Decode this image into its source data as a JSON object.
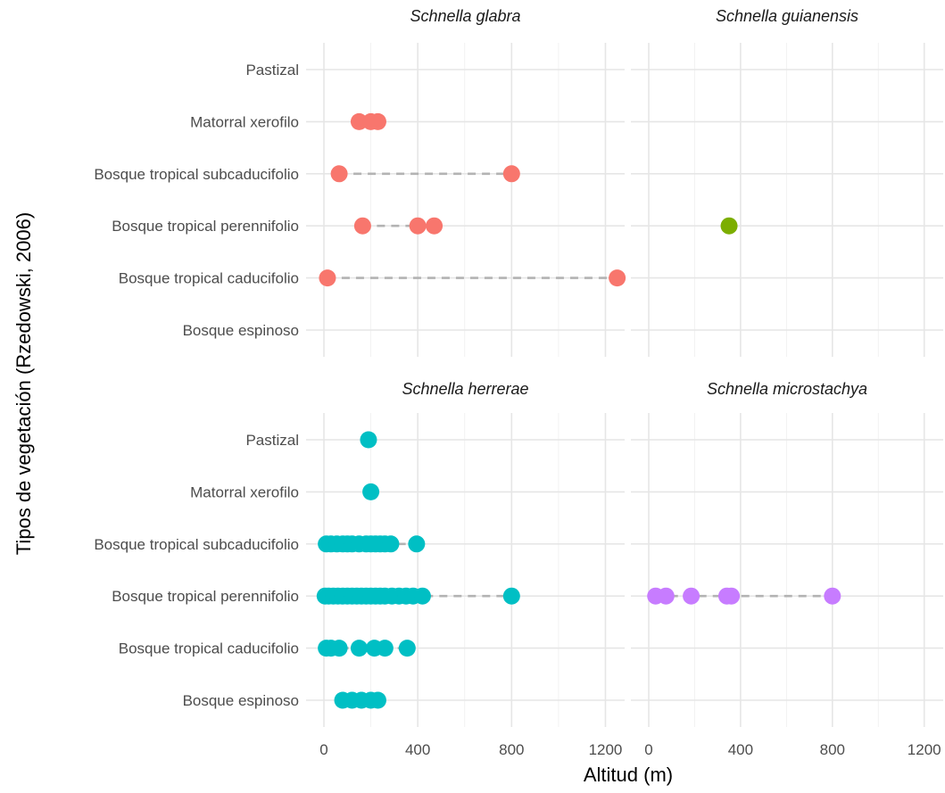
{
  "chart_data": {
    "type": "scatter",
    "facet_layout": "2x2",
    "xlabel": "Altitud (m)",
    "ylabel": "Tipos de vegetación (Rzedowski, 2006)",
    "xlim": [
      -50,
      1300
    ],
    "x_ticks": [
      0,
      400,
      800,
      1200
    ],
    "grid": true,
    "legend": "none",
    "categories": [
      "Bosque espinoso",
      "Bosque tropical caducifolio",
      "Bosque tropical perennifolio",
      "Bosque tropical subcaducifolio",
      "Matorral xerofilo",
      "Pastizal"
    ],
    "panels": [
      {
        "title": "Schnella glabra",
        "color": "#F8766D",
        "points": [
          {
            "category": "Matorral xerofilo",
            "x": [
              150,
              200,
              230
            ]
          },
          {
            "category": "Bosque tropical subcaducifolio",
            "x": [
              65,
              800
            ]
          },
          {
            "category": "Bosque tropical perennifolio",
            "x": [
              165,
              400,
              470
            ]
          },
          {
            "category": "Bosque tropical caducifolio",
            "x": [
              15,
              1250
            ]
          }
        ]
      },
      {
        "title": "Schnella guianensis",
        "color": "#7CAE00",
        "points": [
          {
            "category": "Bosque tropical perennifolio",
            "x": [
              350
            ]
          }
        ]
      },
      {
        "title": "Schnella herrerae",
        "color": "#00BFC4",
        "points": [
          {
            "category": "Pastizal",
            "x": [
              190
            ]
          },
          {
            "category": "Matorral xerofilo",
            "x": [
              200
            ]
          },
          {
            "category": "Bosque tropical subcaducifolio",
            "x": [
              10,
              30,
              55,
              80,
              100,
              120,
              150,
              180,
              200,
              220,
              240,
              260,
              285,
              395
            ]
          },
          {
            "category": "Bosque tropical perennifolio",
            "x": [
              5,
              20,
              40,
              60,
              80,
              100,
              120,
              140,
              160,
              180,
              200,
              220,
              240,
              260,
              290,
              320,
              350,
              380,
              420,
              800
            ]
          },
          {
            "category": "Bosque tropical caducifolio",
            "x": [
              10,
              30,
              65,
              150,
              215,
              260,
              355
            ]
          },
          {
            "category": "Bosque espinoso",
            "x": [
              80,
              120,
              160,
              200,
              230
            ]
          }
        ]
      },
      {
        "title": "Schnella microstachya",
        "color": "#C77CFF",
        "points": [
          {
            "category": "Bosque tropical perennifolio",
            "x": [
              30,
              75,
              185,
              340,
              360,
              800
            ]
          }
        ]
      }
    ]
  }
}
